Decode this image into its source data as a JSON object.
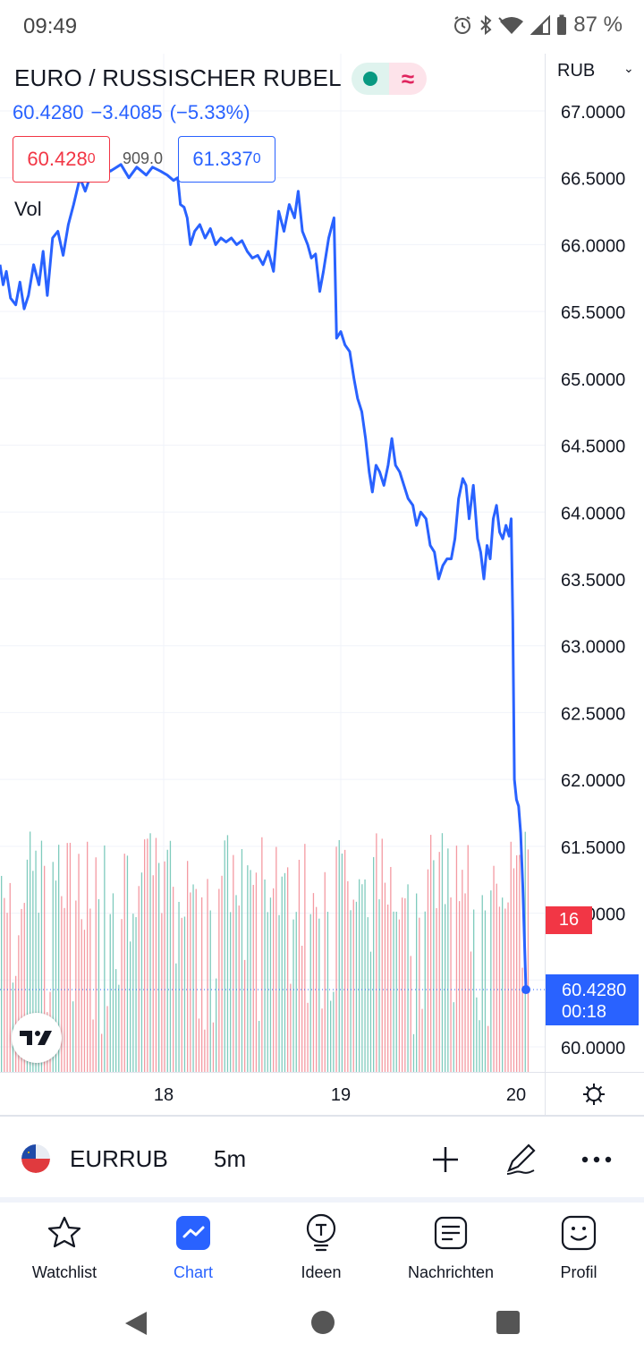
{
  "status_bar": {
    "time": "09:49",
    "battery": "87 %"
  },
  "header": {
    "title": "EURO / RUSSISCHER RUBEL",
    "last_price": "60.4280",
    "change": "−3.4085",
    "change_pct": "(−5.33%)",
    "sell_price": "60.428",
    "sell_price_last_digit": "0",
    "spread": "909.0",
    "buy_price": "61.337",
    "buy_price_last_digit": "0",
    "volume_label": "Vol",
    "currency": "RUB"
  },
  "chart_data": {
    "type": "line",
    "symbol": "EURRUB",
    "interval": "5m",
    "x_ticks": [
      "18",
      "19",
      "20"
    ],
    "y_ticks": [
      "67.0000",
      "66.5000",
      "66.0000",
      "65.5000",
      "65.0000",
      "64.5000",
      "64.0000",
      "63.5000",
      "63.0000",
      "62.5000",
      "62.0000",
      "61.5000",
      "61.0000",
      "60.5000",
      "60.0000"
    ],
    "ylim": [
      59.95,
      67.05
    ],
    "price_points": [
      [
        0.0,
        65.85
      ],
      [
        0.006,
        65.7
      ],
      [
        0.012,
        65.8
      ],
      [
        0.02,
        65.6
      ],
      [
        0.03,
        65.55
      ],
      [
        0.038,
        65.72
      ],
      [
        0.046,
        65.52
      ],
      [
        0.054,
        65.62
      ],
      [
        0.064,
        65.85
      ],
      [
        0.074,
        65.7
      ],
      [
        0.082,
        65.95
      ],
      [
        0.09,
        65.62
      ],
      [
        0.1,
        66.05
      ],
      [
        0.11,
        66.1
      ],
      [
        0.12,
        65.92
      ],
      [
        0.13,
        66.15
      ],
      [
        0.14,
        66.3
      ],
      [
        0.152,
        66.5
      ],
      [
        0.162,
        66.4
      ],
      [
        0.175,
        66.55
      ],
      [
        0.19,
        66.6
      ],
      [
        0.21,
        66.55
      ],
      [
        0.23,
        66.6
      ],
      [
        0.245,
        66.5
      ],
      [
        0.26,
        66.58
      ],
      [
        0.278,
        66.52
      ],
      [
        0.29,
        66.58
      ],
      [
        0.305,
        66.55
      ],
      [
        0.318,
        66.52
      ],
      [
        0.33,
        66.48
      ],
      [
        0.338,
        66.5
      ],
      [
        0.343,
        66.3
      ],
      [
        0.35,
        66.28
      ],
      [
        0.356,
        66.2
      ],
      [
        0.362,
        66.0
      ],
      [
        0.37,
        66.1
      ],
      [
        0.38,
        66.15
      ],
      [
        0.39,
        66.05
      ],
      [
        0.4,
        66.12
      ],
      [
        0.41,
        66.0
      ],
      [
        0.42,
        66.05
      ],
      [
        0.43,
        66.02
      ],
      [
        0.44,
        66.05
      ],
      [
        0.45,
        66.0
      ],
      [
        0.46,
        66.03
      ],
      [
        0.47,
        65.95
      ],
      [
        0.48,
        65.9
      ],
      [
        0.49,
        65.92
      ],
      [
        0.5,
        65.85
      ],
      [
        0.51,
        65.95
      ],
      [
        0.52,
        65.8
      ],
      [
        0.53,
        66.25
      ],
      [
        0.54,
        66.1
      ],
      [
        0.55,
        66.3
      ],
      [
        0.56,
        66.2
      ],
      [
        0.567,
        66.4
      ],
      [
        0.575,
        66.1
      ],
      [
        0.585,
        66.0
      ],
      [
        0.592,
        65.9
      ],
      [
        0.6,
        65.93
      ],
      [
        0.608,
        65.65
      ],
      [
        0.615,
        65.8
      ],
      [
        0.625,
        66.05
      ],
      [
        0.635,
        66.2
      ],
      [
        0.64,
        65.3
      ],
      [
        0.648,
        65.35
      ],
      [
        0.656,
        65.25
      ],
      [
        0.665,
        65.2
      ],
      [
        0.673,
        65.0
      ],
      [
        0.68,
        64.85
      ],
      [
        0.688,
        64.75
      ],
      [
        0.695,
        64.55
      ],
      [
        0.702,
        64.3
      ],
      [
        0.708,
        64.15
      ],
      [
        0.715,
        64.35
      ],
      [
        0.722,
        64.3
      ],
      [
        0.73,
        64.2
      ],
      [
        0.738,
        64.35
      ],
      [
        0.745,
        64.55
      ],
      [
        0.752,
        64.35
      ],
      [
        0.76,
        64.3
      ],
      [
        0.768,
        64.2
      ],
      [
        0.776,
        64.1
      ],
      [
        0.785,
        64.05
      ],
      [
        0.792,
        63.9
      ],
      [
        0.8,
        64.0
      ],
      [
        0.81,
        63.95
      ],
      [
        0.818,
        63.75
      ],
      [
        0.826,
        63.7
      ],
      [
        0.834,
        63.5
      ],
      [
        0.842,
        63.6
      ],
      [
        0.85,
        63.65
      ],
      [
        0.858,
        63.65
      ],
      [
        0.865,
        63.8
      ],
      [
        0.872,
        64.1
      ],
      [
        0.88,
        64.25
      ],
      [
        0.886,
        64.2
      ],
      [
        0.892,
        63.95
      ],
      [
        0.9,
        64.2
      ],
      [
        0.908,
        63.8
      ],
      [
        0.914,
        63.7
      ],
      [
        0.92,
        63.5
      ],
      [
        0.926,
        63.75
      ],
      [
        0.932,
        63.65
      ],
      [
        0.938,
        63.95
      ],
      [
        0.944,
        64.05
      ],
      [
        0.95,
        63.85
      ],
      [
        0.956,
        63.8
      ],
      [
        0.962,
        63.9
      ],
      [
        0.968,
        63.82
      ],
      [
        0.972,
        63.95
      ],
      [
        0.975,
        63.2
      ],
      [
        0.978,
        62.0
      ],
      [
        0.982,
        61.85
      ],
      [
        0.986,
        61.8
      ],
      [
        0.99,
        61.6
      ],
      [
        0.994,
        61.2
      ],
      [
        1.0,
        60.428
      ]
    ],
    "volume": "volume histogram, mixed green and red bars",
    "last_price_label": "60.4280",
    "countdown": "00:18",
    "volume_last_label": "16",
    "colors": {
      "line": "#2962ff",
      "up": "#089981",
      "down": "#f23645",
      "grid": "#f0f3fa"
    }
  },
  "toolbar": {
    "symbol": "EURRUB",
    "interval": "5m"
  },
  "nav": {
    "items": [
      {
        "label": "Watchlist",
        "icon": "star-icon"
      },
      {
        "label": "Chart",
        "icon": "chart-icon"
      },
      {
        "label": "Ideen",
        "icon": "lightbulb-icon"
      },
      {
        "label": "Nachrichten",
        "icon": "news-icon"
      },
      {
        "label": "Profil",
        "icon": "smiley-icon"
      }
    ],
    "active_index": 1
  }
}
